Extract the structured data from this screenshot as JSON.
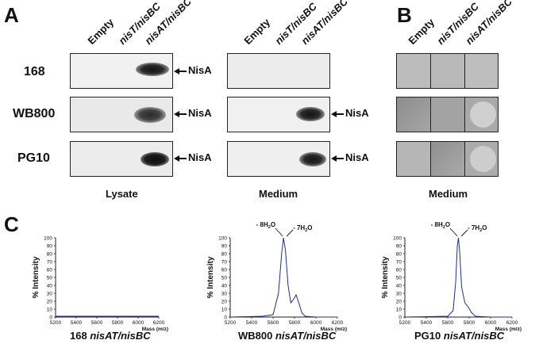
{
  "panels": {
    "a": "A",
    "b": "B",
    "c": "C"
  },
  "columns": {
    "empty": "Empty",
    "nisT_nisBC": "nisT/nisBC",
    "nisAT_nisBC": "nisAT/nisBC"
  },
  "rows": [
    "168",
    "WB800",
    "PG10"
  ],
  "nisA_label": "NisA",
  "captions": {
    "lysate": "Lysate",
    "medium_a": "Medium",
    "medium_b": "Medium"
  },
  "ms": {
    "x_ticks": [
      "5200",
      "5400",
      "5600",
      "5800",
      "6000",
      "6200"
    ],
    "y_ticks": [
      "0",
      "10",
      "20",
      "30",
      "40",
      "50",
      "60",
      "70",
      "80",
      "90",
      "100"
    ],
    "ylabel": "% Intensity",
    "xlabel": "Mass (m/z)",
    "peak_labels": [
      "- 8H",
      "2",
      "O",
      "- 7H",
      "2",
      "O"
    ],
    "strain_168": "168",
    "strain_wb800": "WB800",
    "strain_pg10": "PG10",
    "construct": "nisAT/nisBC",
    "line_color": "#1f2d8f"
  },
  "chart_data": [
    {
      "type": "line",
      "title": "168 nisAT/nisBC",
      "xlabel": "Mass (m/z)",
      "ylabel": "% Intensity",
      "xlim": [
        5200,
        6200
      ],
      "ylim": [
        0,
        100
      ],
      "x": [
        5200,
        5400,
        5600,
        5800,
        6000,
        6200
      ],
      "y": [
        1,
        1,
        1,
        1,
        1,
        1
      ]
    },
    {
      "type": "line",
      "title": "WB800 nisAT/nisBC",
      "xlabel": "Mass (m/z)",
      "ylabel": "% Intensity",
      "xlim": [
        5200,
        6200
      ],
      "ylim": [
        0,
        100
      ],
      "x": [
        5200,
        5500,
        5600,
        5650,
        5680,
        5697,
        5715,
        5740,
        5765,
        5790,
        5815,
        5840,
        5870,
        5900,
        6000,
        6200
      ],
      "y": [
        0,
        1,
        3,
        30,
        80,
        100,
        85,
        40,
        18,
        22,
        28,
        18,
        5,
        1,
        0,
        0
      ],
      "annotations": [
        "- 8H2O",
        "- 7H2O"
      ]
    },
    {
      "type": "line",
      "title": "PG10 nisAT/nisBC",
      "xlabel": "Mass (m/z)",
      "ylabel": "% Intensity",
      "xlim": [
        5200,
        6200
      ],
      "ylim": [
        0,
        100
      ],
      "x": [
        5200,
        5600,
        5650,
        5675,
        5690,
        5700,
        5712,
        5730,
        5760,
        5790,
        5820,
        5860,
        6000,
        6200
      ],
      "y": [
        0,
        1,
        8,
        45,
        90,
        100,
        82,
        38,
        18,
        13,
        6,
        1,
        0,
        0
      ],
      "annotations": [
        "- 8H2O",
        "- 7H2O"
      ]
    }
  ]
}
